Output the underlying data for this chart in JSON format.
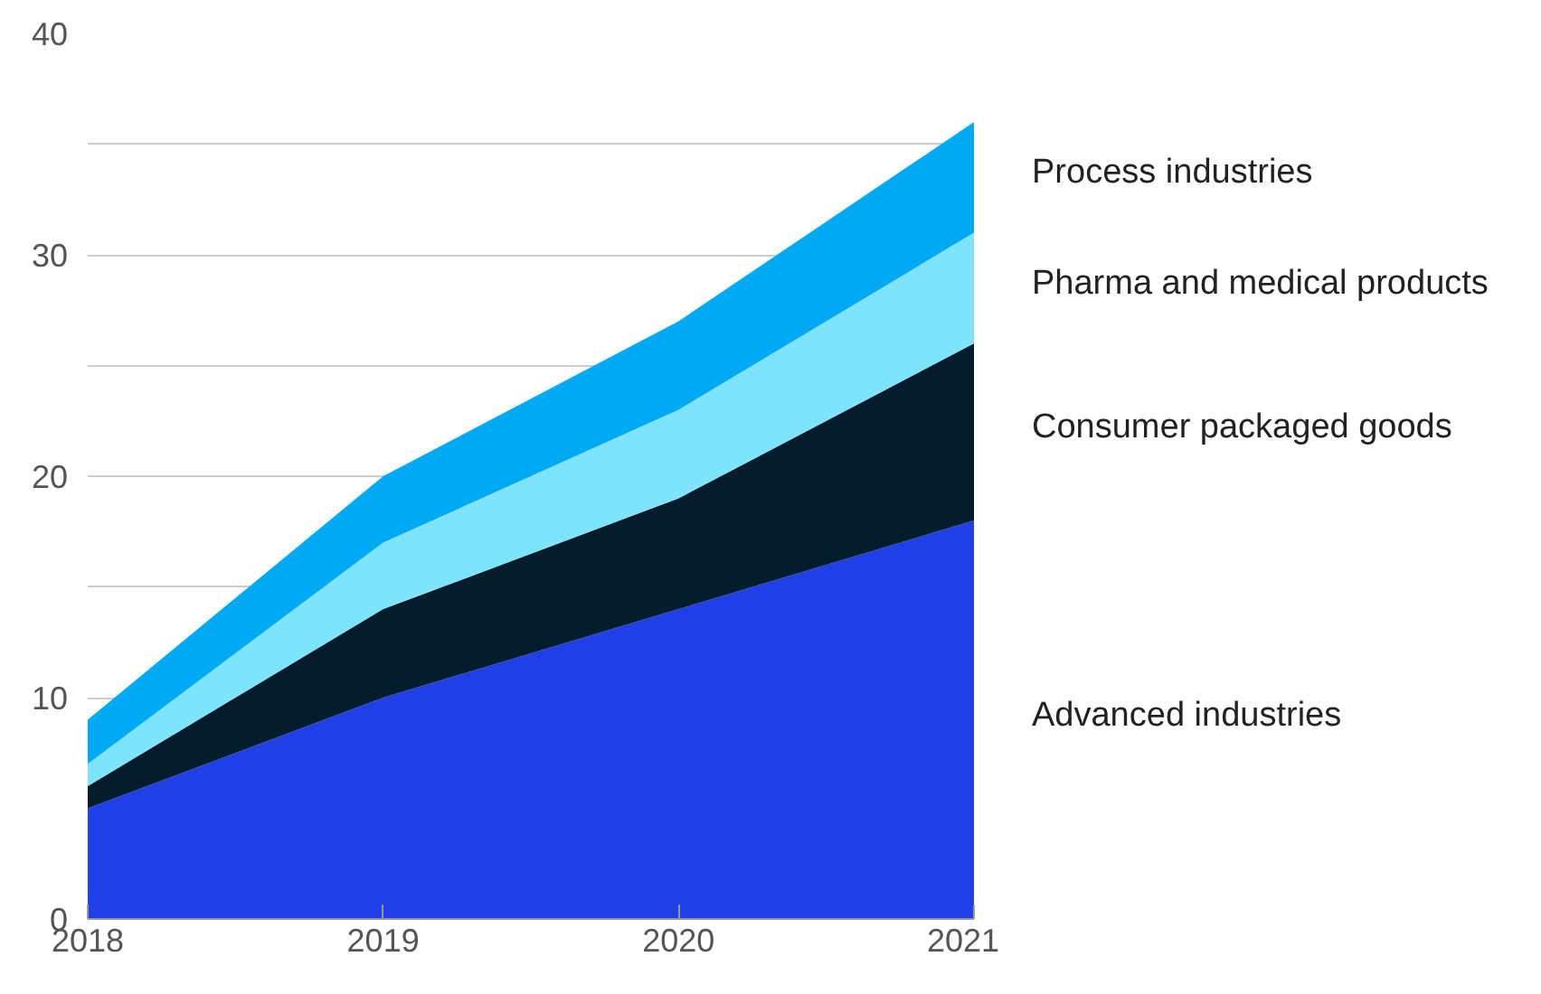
{
  "chart_data": {
    "type": "area",
    "stacked": true,
    "x": [
      2018,
      2019,
      2020,
      2021
    ],
    "xlim": [
      2018,
      2021
    ],
    "xticks": [
      2018,
      2019,
      2020,
      2021
    ],
    "ylim": [
      0,
      40
    ],
    "yticks": [
      0,
      10,
      {
        "value": 15,
        "label": null
      },
      20,
      {
        "value": 25,
        "label": null
      },
      30,
      {
        "value": 35,
        "label": null
      },
      40
    ],
    "grid": "y",
    "series": [
      {
        "name": "Advanced industries",
        "color": "#1f40e6",
        "values": [
          5,
          10,
          14,
          18
        ]
      },
      {
        "name": "Consumer packaged goods",
        "color": "#051c2c",
        "values": [
          1,
          4,
          5,
          8
        ]
      },
      {
        "name": "Pharma and medical products",
        "color": "#7de4fb",
        "values": [
          1,
          3,
          4,
          5
        ]
      },
      {
        "name": "Process industries",
        "color": "#00a9f4",
        "values": [
          2,
          3,
          4,
          5
        ]
      }
    ]
  }
}
